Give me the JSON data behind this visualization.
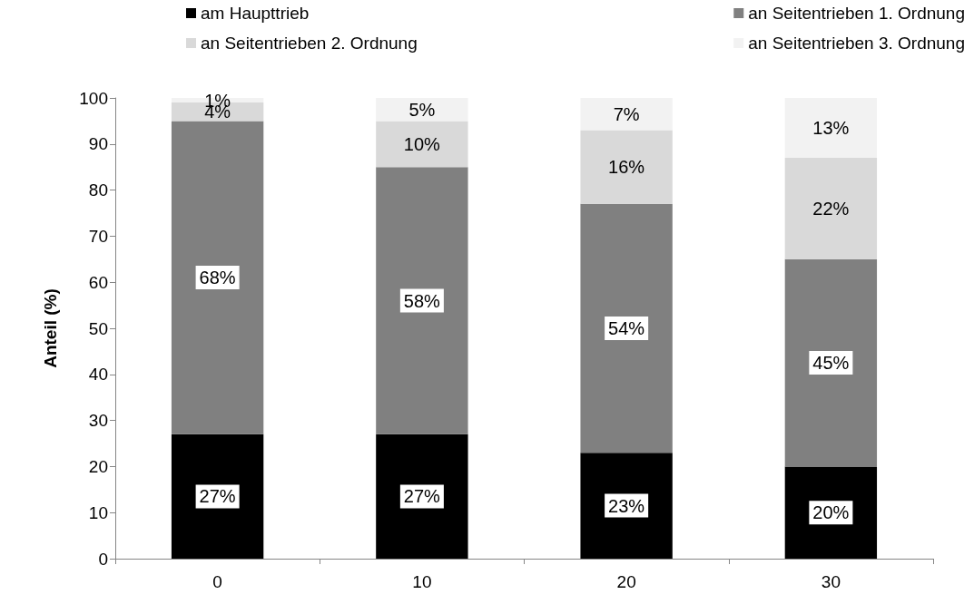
{
  "chart_data": {
    "type": "bar",
    "stacked": true,
    "ylabel": "Anteil (%)",
    "categories": [
      "0",
      "10",
      "20",
      "30"
    ],
    "series": [
      {
        "name": "am Haupttrieb",
        "color": "#000000",
        "values": [
          27,
          27,
          23,
          20
        ],
        "value_labels": [
          "27%",
          "27%",
          "23%",
          "20%"
        ]
      },
      {
        "name": "an Seitentrieben 1. Ordnung",
        "color": "#808080",
        "values": [
          68,
          58,
          54,
          45
        ],
        "value_labels": [
          "68%",
          "58%",
          "54%",
          "45%"
        ]
      },
      {
        "name": "an Seitentrieben 2. Ordnung",
        "color": "#d9d9d9",
        "values": [
          4,
          10,
          16,
          22
        ],
        "value_labels": [
          "4%",
          "10%",
          "16%",
          "22%"
        ]
      },
      {
        "name": "an Seitentrieben 3. Ordnung",
        "color": "#f2f2f2",
        "values": [
          1,
          5,
          7,
          13
        ],
        "value_labels": [
          "1%",
          "5%",
          "7%",
          "13%"
        ]
      }
    ],
    "ylim": [
      0,
      100
    ],
    "yticks": [
      0,
      10,
      20,
      30,
      40,
      50,
      60,
      70,
      80,
      90,
      100
    ],
    "grid": false,
    "legend": "top"
  }
}
